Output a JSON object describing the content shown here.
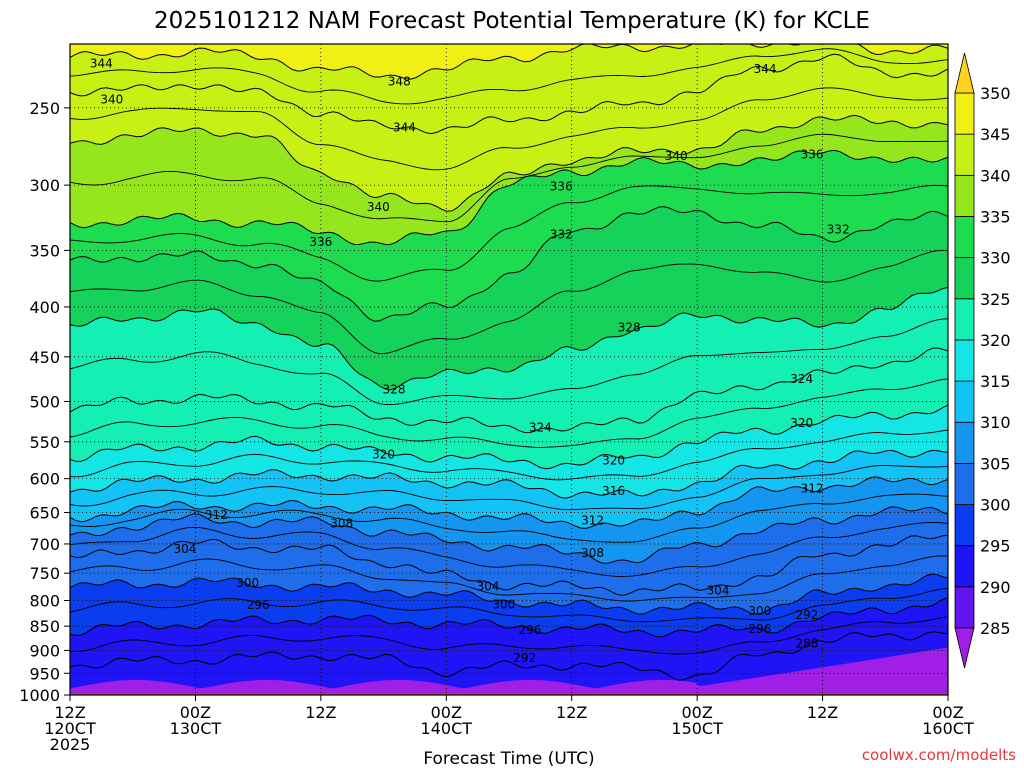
{
  "chart_data": {
    "type": "heatmap",
    "title": "2025101212 NAM Forecast Potential Temperature (K) for KCLE",
    "xlabel": "Forecast Time (UTC)",
    "ylabel": "",
    "credit": "coolwx.com/modelts",
    "y_axis": {
      "scale": "log",
      "ticks": [
        250,
        300,
        350,
        400,
        450,
        500,
        550,
        600,
        650,
        700,
        750,
        800,
        850,
        900,
        950,
        1000
      ],
      "ylim": [
        1000,
        215
      ],
      "unit": "hPa"
    },
    "x_axis": {
      "ticks": [
        {
          "hour": 0,
          "line1": "12Z",
          "line2": "120CT",
          "line3": "2025"
        },
        {
          "hour": 12,
          "line1": "00Z",
          "line2": "130CT",
          "line3": ""
        },
        {
          "hour": 24,
          "line1": "12Z",
          "line2": "",
          "line3": ""
        },
        {
          "hour": 36,
          "line1": "00Z",
          "line2": "140CT",
          "line3": ""
        },
        {
          "hour": 48,
          "line1": "12Z",
          "line2": "",
          "line3": ""
        },
        {
          "hour": 60,
          "line1": "00Z",
          "line2": "150CT",
          "line3": ""
        },
        {
          "hour": 72,
          "line1": "12Z",
          "line2": "",
          "line3": ""
        },
        {
          "hour": 84,
          "line1": "00Z",
          "line2": "160CT",
          "line3": ""
        }
      ],
      "xlim": [
        0,
        84
      ]
    },
    "colorbar": {
      "levels": [
        285,
        290,
        295,
        300,
        305,
        310,
        315,
        320,
        325,
        330,
        335,
        340,
        345,
        350
      ],
      "colors": [
        "#a01ee6",
        "#6414f0",
        "#1e14f5",
        "#0a3cf0",
        "#1e6eeb",
        "#1496f0",
        "#14c3f5",
        "#14e6e6",
        "#14f0b4",
        "#14d25a",
        "#1edc50",
        "#96e61e",
        "#c8f014",
        "#f0f014",
        "#ffd21e"
      ]
    },
    "contour_labels": [
      {
        "value": "344",
        "hour": 3,
        "pres": 225
      },
      {
        "value": "340",
        "hour": 4,
        "pres": 245
      },
      {
        "value": "348",
        "hour": 31.5,
        "pres": 235
      },
      {
        "value": "344",
        "hour": 32,
        "pres": 262
      },
      {
        "value": "340",
        "hour": 29.5,
        "pres": 316
      },
      {
        "value": "336",
        "hour": 24,
        "pres": 343
      },
      {
        "value": "336",
        "hour": 47,
        "pres": 301
      },
      {
        "value": "332",
        "hour": 47,
        "pres": 337
      },
      {
        "value": "340",
        "hour": 58,
        "pres": 280
      },
      {
        "value": "344",
        "hour": 66.5,
        "pres": 228
      },
      {
        "value": "336",
        "hour": 71,
        "pres": 279
      },
      {
        "value": "332",
        "hour": 73.5,
        "pres": 333
      },
      {
        "value": "328",
        "hour": 53.5,
        "pres": 420
      },
      {
        "value": "328",
        "hour": 31,
        "pres": 486
      },
      {
        "value": "324",
        "hour": 45,
        "pres": 532
      },
      {
        "value": "324",
        "hour": 70,
        "pres": 474
      },
      {
        "value": "320",
        "hour": 30,
        "pres": 567
      },
      {
        "value": "320",
        "hour": 52,
        "pres": 575
      },
      {
        "value": "320",
        "hour": 70,
        "pres": 526
      },
      {
        "value": "316",
        "hour": 52,
        "pres": 618
      },
      {
        "value": "312",
        "hour": 14,
        "pres": 654
      },
      {
        "value": "312",
        "hour": 50,
        "pres": 662
      },
      {
        "value": "312",
        "hour": 71,
        "pres": 614
      },
      {
        "value": "308",
        "hour": 26,
        "pres": 667
      },
      {
        "value": "308",
        "hour": 50,
        "pres": 715
      },
      {
        "value": "304",
        "hour": 11,
        "pres": 708
      },
      {
        "value": "304",
        "hour": 40,
        "pres": 774
      },
      {
        "value": "304",
        "hour": 62,
        "pres": 781
      },
      {
        "value": "300",
        "hour": 17,
        "pres": 768
      },
      {
        "value": "300",
        "hour": 41.5,
        "pres": 808
      },
      {
        "value": "300",
        "hour": 66,
        "pres": 820
      },
      {
        "value": "296",
        "hour": 18,
        "pres": 809
      },
      {
        "value": "296",
        "hour": 44,
        "pres": 858
      },
      {
        "value": "296",
        "hour": 66,
        "pres": 856
      },
      {
        "value": "292",
        "hour": 70.5,
        "pres": 828
      },
      {
        "value": "292",
        "hour": 43.5,
        "pres": 916
      },
      {
        "value": "288",
        "hour": 70.5,
        "pres": 885
      }
    ],
    "ground": {
      "color": "#a0522d",
      "from_pres": 995
    }
  }
}
